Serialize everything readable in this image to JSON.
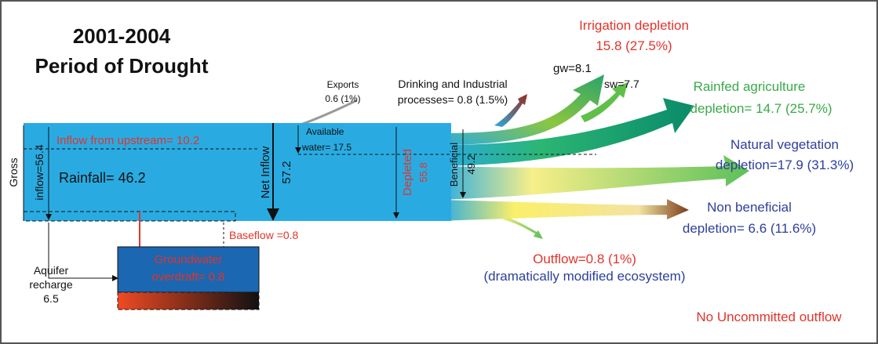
{
  "title": {
    "line1": "2001-2004",
    "line2": "Period of Drought"
  },
  "irrigation": {
    "line1": "Irrigation depletion",
    "line2": "15.8 (27.5%)",
    "gw": "gw=8.1",
    "sw": "sw=7.7"
  },
  "rainfed": {
    "line1": "Rainfed agriculture",
    "line2": "depletion= 14.7 (25.7%)"
  },
  "natural": {
    "line1": "Natural vegetation",
    "line2": "depletion=17.9 (31.3%)"
  },
  "nonbeneficial": {
    "line1": "Non beneficial",
    "line2": "depletion= 6.6 (11.6%)"
  },
  "outflow": {
    "line1": "Outflow=0.8 (1%)",
    "line2": "(dramatically modified ecosystem)"
  },
  "uncommitted": "No Uncommitted outflow",
  "exports": {
    "line1": "Exports",
    "line2": "0.6 (1%)"
  },
  "drinking": {
    "line1": "Drinking and Industrial",
    "line2": "processes= 0.8 (1.5%)"
  },
  "available": {
    "line1": "Available",
    "line2": "water= 17.5"
  },
  "inflow_upstream": "Inflow from upstream= 10.2",
  "rainfall": "Rainfall= 46.2",
  "gross": {
    "line1": "Gross",
    "line2": "inflow=56.4"
  },
  "net_inflow": {
    "line1": "Net Inflow",
    "line2": "57.2"
  },
  "depleted": {
    "line1": "Depleted",
    "line2": "55.8"
  },
  "beneficial": {
    "line1": "Beneficial",
    "line2": "49.2"
  },
  "baseflow": "Baseflow =0.8",
  "groundwater": {
    "line1": "Groundwater",
    "line2": "overdraft= 0.8"
  },
  "aquifer": {
    "line1": "Aquifer",
    "line2": "recharge",
    "line3": "6.5"
  }
}
